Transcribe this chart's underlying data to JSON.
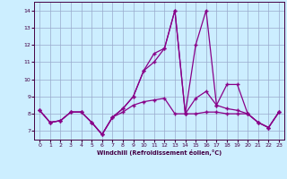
{
  "xlabel": "Windchill (Refroidissement éolien,°C)",
  "x": [
    0,
    1,
    2,
    3,
    4,
    5,
    6,
    7,
    8,
    9,
    10,
    11,
    12,
    13,
    14,
    15,
    16,
    17,
    18,
    19,
    20,
    21,
    22,
    23
  ],
  "line1": [
    8.2,
    7.5,
    7.6,
    8.1,
    8.1,
    7.5,
    6.8,
    7.8,
    8.1,
    8.5,
    8.7,
    8.8,
    8.9,
    8.0,
    8.0,
    8.0,
    8.1,
    8.1,
    8.0,
    8.0,
    8.0,
    7.5,
    7.2,
    8.1
  ],
  "line2": [
    8.2,
    7.5,
    7.6,
    8.1,
    8.1,
    7.5,
    6.8,
    7.8,
    8.3,
    9.0,
    10.5,
    11.0,
    11.8,
    14.0,
    8.0,
    8.9,
    9.3,
    8.5,
    8.3,
    8.2,
    8.0,
    7.5,
    7.2,
    8.1
  ],
  "line3": [
    8.2,
    7.5,
    7.6,
    8.1,
    8.1,
    7.5,
    6.8,
    7.8,
    8.3,
    9.0,
    10.5,
    11.5,
    11.8,
    14.0,
    8.0,
    12.0,
    14.0,
    8.5,
    9.7,
    9.7,
    8.0,
    7.5,
    7.2,
    8.1
  ],
  "line_color": "#880088",
  "bg_color": "#cceeff",
  "grid_color": "#99aacc",
  "ylim": [
    6.5,
    14.5
  ],
  "xlim": [
    -0.5,
    23.5
  ],
  "yticks": [
    7,
    8,
    9,
    10,
    11,
    12,
    13,
    14
  ],
  "xticks": [
    0,
    1,
    2,
    3,
    4,
    5,
    6,
    7,
    8,
    9,
    10,
    11,
    12,
    13,
    14,
    15,
    16,
    17,
    18,
    19,
    20,
    21,
    22,
    23
  ]
}
